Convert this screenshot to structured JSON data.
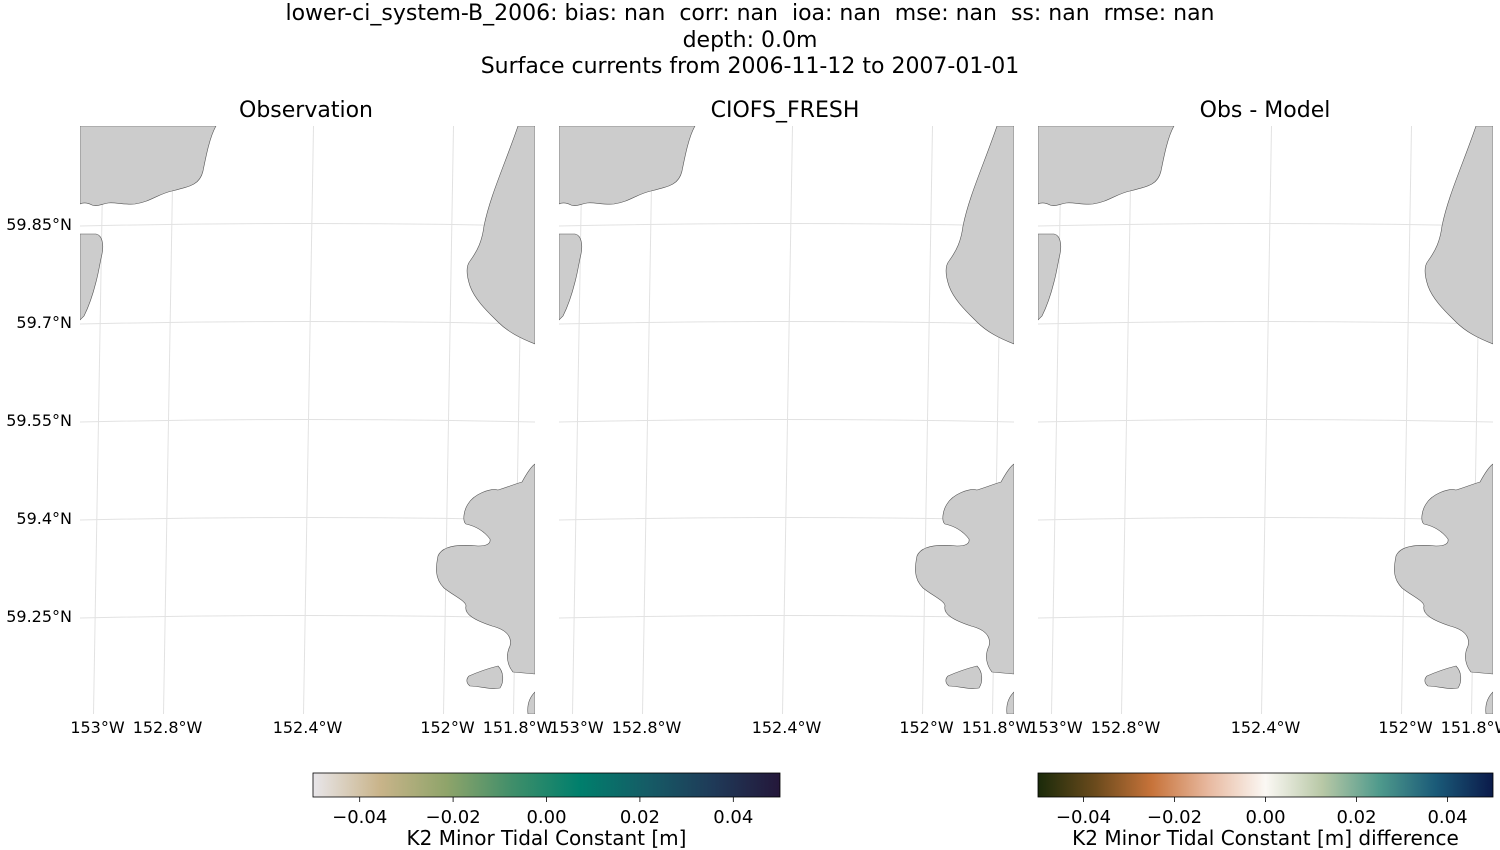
{
  "title_lines": [
    "lower-ci_system-B_2006: bias: nan  corr: nan  ioa: nan  mse: nan  ss: nan  rmse: nan",
    "depth: 0.0m",
    "Surface currents from 2006-11-12 to 2007-01-01"
  ],
  "chart_data": {
    "type": "heatmap",
    "map_projection": "lat/lon map",
    "panels": [
      {
        "title": "Observation"
      },
      {
        "title": "CIOFS_FRESH"
      },
      {
        "title": "Obs - Model"
      }
    ],
    "lon_ticks": [
      "153°W",
      "152.8°W",
      "152.4°W",
      "152°W",
      "151.8°W"
    ],
    "lon_values": [
      -153.0,
      -152.8,
      -152.4,
      -152.0,
      -151.8
    ],
    "lat_ticks": [
      "59.85°N",
      "59.7°N",
      "59.55°N",
      "59.4°N",
      "59.25°N"
    ],
    "lat_values": [
      59.85,
      59.7,
      59.55,
      59.4,
      59.25
    ],
    "xlim": [
      -153.05,
      -151.75
    ],
    "ylim": [
      59.1,
      60.0
    ],
    "land_color": "#cccccc",
    "grid": true,
    "data": "no values (all NaN)",
    "colorbars": [
      {
        "label": "K2 Minor Tidal Constant [m]",
        "ticks": [
          "−0.04",
          "−0.02",
          "0.00",
          "0.02",
          "0.04"
        ],
        "tick_values": [
          -0.04,
          -0.02,
          0.0,
          0.02,
          0.04
        ],
        "range": [
          -0.05,
          0.05
        ],
        "colormap": [
          "#e8e6ea",
          "#c9b48a",
          "#8fa46a",
          "#3f8e6a",
          "#007f6c",
          "#155c66",
          "#1f3a58",
          "#24173a"
        ]
      },
      {
        "label": "K2 Minor Tidal Constant [m] difference",
        "ticks": [
          "−0.04",
          "−0.02",
          "0.00",
          "0.02",
          "0.04"
        ],
        "tick_values": [
          -0.04,
          -0.02,
          0.0,
          0.02,
          0.04
        ],
        "range": [
          -0.05,
          0.05
        ],
        "colormap": [
          "#1a2a0a",
          "#6a4a1c",
          "#c7733a",
          "#e8b9a0",
          "#fbf8f4",
          "#b8c8a6",
          "#4f9a8c",
          "#1a5a78",
          "#0b1a4a"
        ]
      }
    ]
  }
}
